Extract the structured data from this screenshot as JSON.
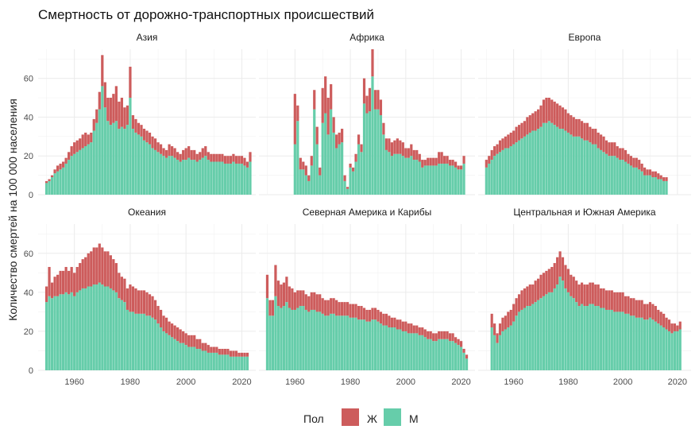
{
  "chart_data": {
    "type": "bar",
    "stacked": true,
    "facets_layout": "2x3 small multiples, shared axes",
    "title": "Смертность от дорожно-транспортных происшествий",
    "ylabel": "Количество смертей на 100 000 населения",
    "xlabel": "",
    "xlim": [
      1947,
      2025
    ],
    "ylim": [
      0,
      75
    ],
    "x_ticks": [
      1960,
      1980,
      2000,
      2020
    ],
    "y_ticks": [
      0,
      20,
      40,
      60
    ],
    "grid": true,
    "legend": {
      "title": "Пол",
      "placement": "bottom",
      "items": [
        {
          "label": "Ж",
          "color": "#cd5c5c"
        },
        {
          "label": "М",
          "color": "#66cdaa"
        }
      ]
    },
    "panels": [
      {
        "name": "Азия",
        "start_year": 1950,
        "series": [
          {
            "name": "М",
            "color": "#66cdaa",
            "values": [
              6,
              7,
              9,
              11,
              12,
              13,
              14,
              16,
              18,
              20,
              21,
              22,
              23,
              24,
              25,
              26,
              27,
              33,
              37,
              44,
              56,
              45,
              38,
              36,
              37,
              38,
              34,
              35,
              34,
              36,
              50,
              34,
              32,
              31,
              30,
              28,
              27,
              26,
              24,
              23,
              22,
              21,
              20,
              19,
              20,
              20,
              19,
              18,
              17,
              18,
              18,
              19,
              18,
              18,
              17,
              18,
              19,
              20,
              18,
              17,
              17,
              17,
              17,
              17,
              16,
              16,
              16,
              17,
              16,
              16,
              16,
              15,
              14,
              17
            ]
          },
          {
            "name": "Ж",
            "color": "#cd5c5c",
            "values": [
              1,
              1,
              1,
              2,
              3,
              3,
              3,
              3,
              4,
              5,
              6,
              6,
              6,
              7,
              7,
              5,
              5,
              6,
              7,
              9,
              16,
              13,
              12,
              14,
              15,
              18,
              14,
              15,
              11,
              10,
              16,
              7,
              7,
              6,
              6,
              6,
              6,
              6,
              6,
              6,
              5,
              5,
              4,
              4,
              6,
              5,
              5,
              4,
              4,
              5,
              6,
              6,
              5,
              5,
              4,
              4,
              5,
              5,
              4,
              4,
              4,
              4,
              4,
              4,
              4,
              4,
              4,
              4,
              4,
              4,
              4,
              4,
              3,
              5
            ]
          }
        ]
      },
      {
        "name": "Африка",
        "start_year": 1960,
        "series": [
          {
            "name": "М",
            "color": "#66cdaa",
            "values": [
              26,
              38,
              13,
              13,
              10,
              7,
              15,
              44,
              26,
              10,
              37,
              42,
              31,
              44,
              32,
              24,
              26,
              27,
              7,
              3,
              14,
              12,
              17,
              26,
              22,
              47,
              42,
              43,
              61,
              44,
              44,
              41,
              31,
              23,
              22,
              20,
              21,
              21,
              21,
              20,
              19,
              19,
              20,
              18,
              18,
              17,
              14,
              15,
              15,
              15,
              15,
              15,
              16,
              16,
              16,
              16,
              15,
              15,
              14,
              13,
              13,
              16
            ]
          },
          {
            "name": "Ж",
            "color": "#cd5c5c",
            "values": [
              26,
              8,
              6,
              4,
              5,
              3,
              5,
              10,
              9,
              4,
              18,
              19,
              19,
              13,
              8,
              7,
              6,
              7,
              3,
              1,
              2,
              2,
              4,
              5,
              4,
              13,
              9,
              12,
              14,
              10,
              10,
              8,
              6,
              6,
              7,
              7,
              7,
              8,
              7,
              7,
              5,
              5,
              6,
              5,
              5,
              4,
              4,
              3,
              4,
              4,
              4,
              4,
              6,
              6,
              4,
              4,
              3,
              3,
              3,
              2,
              2,
              4
            ]
          }
        ]
      },
      {
        "name": "Европа",
        "start_year": 1950,
        "series": [
          {
            "name": "М",
            "color": "#66cdaa",
            "values": [
              14,
              16,
              18,
              20,
              21,
              22,
              23,
              24,
              24,
              25,
              26,
              27,
              28,
              29,
              30,
              31,
              32,
              33,
              33,
              34,
              35,
              37,
              37,
              38,
              37,
              36,
              35,
              34,
              34,
              33,
              32,
              31,
              30,
              30,
              30,
              29,
              28,
              28,
              27,
              26,
              26,
              24,
              23,
              22,
              21,
              20,
              20,
              20,
              19,
              18,
              18,
              17,
              16,
              15,
              14,
              14,
              13,
              12,
              10,
              10,
              10,
              9,
              9,
              8,
              8,
              7,
              7
            ]
          },
          {
            "name": "Ж",
            "color": "#cd5c5c",
            "values": [
              4,
              4,
              5,
              5,
              5,
              6,
              6,
              6,
              7,
              7,
              7,
              8,
              8,
              8,
              8,
              9,
              9,
              9,
              10,
              10,
              11,
              12,
              13,
              12,
              12,
              12,
              12,
              12,
              11,
              11,
              10,
              10,
              10,
              9,
              9,
              9,
              9,
              9,
              8,
              8,
              8,
              8,
              8,
              8,
              7,
              7,
              7,
              7,
              6,
              6,
              6,
              6,
              5,
              5,
              5,
              5,
              5,
              4,
              4,
              3,
              3,
              3,
              3,
              3,
              2,
              2,
              2
            ]
          }
        ]
      },
      {
        "name": "Океания",
        "start_year": 1950,
        "series": [
          {
            "name": "М",
            "color": "#66cdaa",
            "values": [
              35,
              38,
              37,
              38,
              38,
              39,
              39,
              40,
              39,
              40,
              38,
              40,
              41,
              42,
              42,
              43,
              43,
              44,
              44,
              45,
              44,
              43,
              43,
              42,
              41,
              40,
              37,
              36,
              35,
              31,
              30,
              30,
              29,
              29,
              29,
              29,
              28,
              28,
              27,
              26,
              24,
              22,
              20,
              19,
              18,
              17,
              16,
              15,
              14,
              14,
              13,
              12,
              12,
              12,
              11,
              11,
              10,
              10,
              9,
              9,
              9,
              9,
              8,
              8,
              8,
              8,
              7,
              7,
              7,
              7,
              7,
              7,
              7
            ]
          },
          {
            "name": "Ж",
            "color": "#cd5c5c",
            "values": [
              8,
              15,
              8,
              10,
              11,
              12,
              12,
              13,
              12,
              13,
              12,
              13,
              14,
              15,
              16,
              17,
              18,
              19,
              19,
              20,
              19,
              18,
              18,
              17,
              16,
              15,
              13,
              12,
              12,
              11,
              14,
              13,
              13,
              12,
              12,
              12,
              12,
              11,
              11,
              10,
              9,
              9,
              8,
              8,
              7,
              7,
              7,
              7,
              7,
              6,
              6,
              6,
              6,
              6,
              5,
              5,
              4,
              4,
              4,
              3,
              3,
              3,
              3,
              3,
              3,
              3,
              3,
              3,
              3,
              2,
              2,
              2,
              2
            ]
          }
        ]
      },
      {
        "name": "Северная Америка и Карибы",
        "start_year": 1950,
        "series": [
          {
            "name": "М",
            "color": "#66cdaa",
            "values": [
              37,
              28,
              28,
              38,
              33,
              32,
              33,
              35,
              32,
              31,
              31,
              32,
              33,
              33,
              31,
              30,
              31,
              31,
              30,
              30,
              29,
              28,
              28,
              29,
              29,
              28,
              28,
              28,
              28,
              28,
              27,
              27,
              27,
              26,
              26,
              26,
              25,
              25,
              26,
              26,
              25,
              24,
              23,
              23,
              22,
              22,
              22,
              21,
              21,
              20,
              20,
              19,
              19,
              19,
              19,
              18,
              18,
              17,
              16,
              16,
              15,
              15,
              16,
              16,
              16,
              16,
              15,
              15,
              14,
              13,
              12,
              9,
              6
            ]
          },
          {
            "name": "Ж",
            "color": "#cd5c5c",
            "values": [
              12,
              8,
              8,
              16,
              13,
              12,
              12,
              13,
              11,
              11,
              9,
              9,
              8,
              8,
              8,
              8,
              9,
              9,
              9,
              9,
              8,
              8,
              8,
              8,
              8,
              8,
              7,
              7,
              7,
              7,
              7,
              7,
              7,
              7,
              7,
              6,
              6,
              6,
              6,
              6,
              6,
              6,
              6,
              6,
              6,
              5,
              5,
              5,
              5,
              5,
              5,
              5,
              5,
              4,
              4,
              4,
              4,
              4,
              4,
              4,
              4,
              4,
              4,
              4,
              4,
              4,
              4,
              4,
              3,
              3,
              3,
              2,
              2
            ]
          }
        ]
      },
      {
        "name": "Центральная и Южная Америка",
        "start_year": 1952,
        "series": [
          {
            "name": "М",
            "color": "#66cdaa",
            "values": [
              22,
              18,
              14,
              18,
              20,
              21,
              22,
              23,
              25,
              28,
              30,
              31,
              32,
              33,
              33,
              34,
              35,
              36,
              37,
              38,
              39,
              40,
              40,
              42,
              44,
              48,
              46,
              42,
              40,
              38,
              37,
              35,
              33,
              34,
              33,
              33,
              34,
              34,
              33,
              33,
              32,
              32,
              31,
              31,
              31,
              30,
              30,
              30,
              30,
              29,
              29,
              28,
              28,
              27,
              27,
              27,
              26,
              26,
              27,
              26,
              25,
              24,
              23,
              22,
              21,
              20,
              19,
              20,
              20,
              21
            ]
          },
          {
            "name": "Ж",
            "color": "#cd5c5c",
            "values": [
              7,
              6,
              5,
              6,
              7,
              7,
              8,
              8,
              9,
              9,
              9,
              10,
              10,
              10,
              11,
              10,
              11,
              11,
              12,
              12,
              12,
              12,
              13,
              13,
              14,
              13,
              12,
              12,
              12,
              11,
              11,
              11,
              11,
              11,
              11,
              11,
              11,
              11,
              11,
              11,
              10,
              10,
              10,
              10,
              10,
              10,
              10,
              10,
              10,
              9,
              9,
              9,
              9,
              9,
              9,
              9,
              8,
              8,
              8,
              8,
              8,
              7,
              7,
              7,
              6,
              6,
              5,
              4,
              3,
              4
            ]
          }
        ]
      }
    ]
  }
}
